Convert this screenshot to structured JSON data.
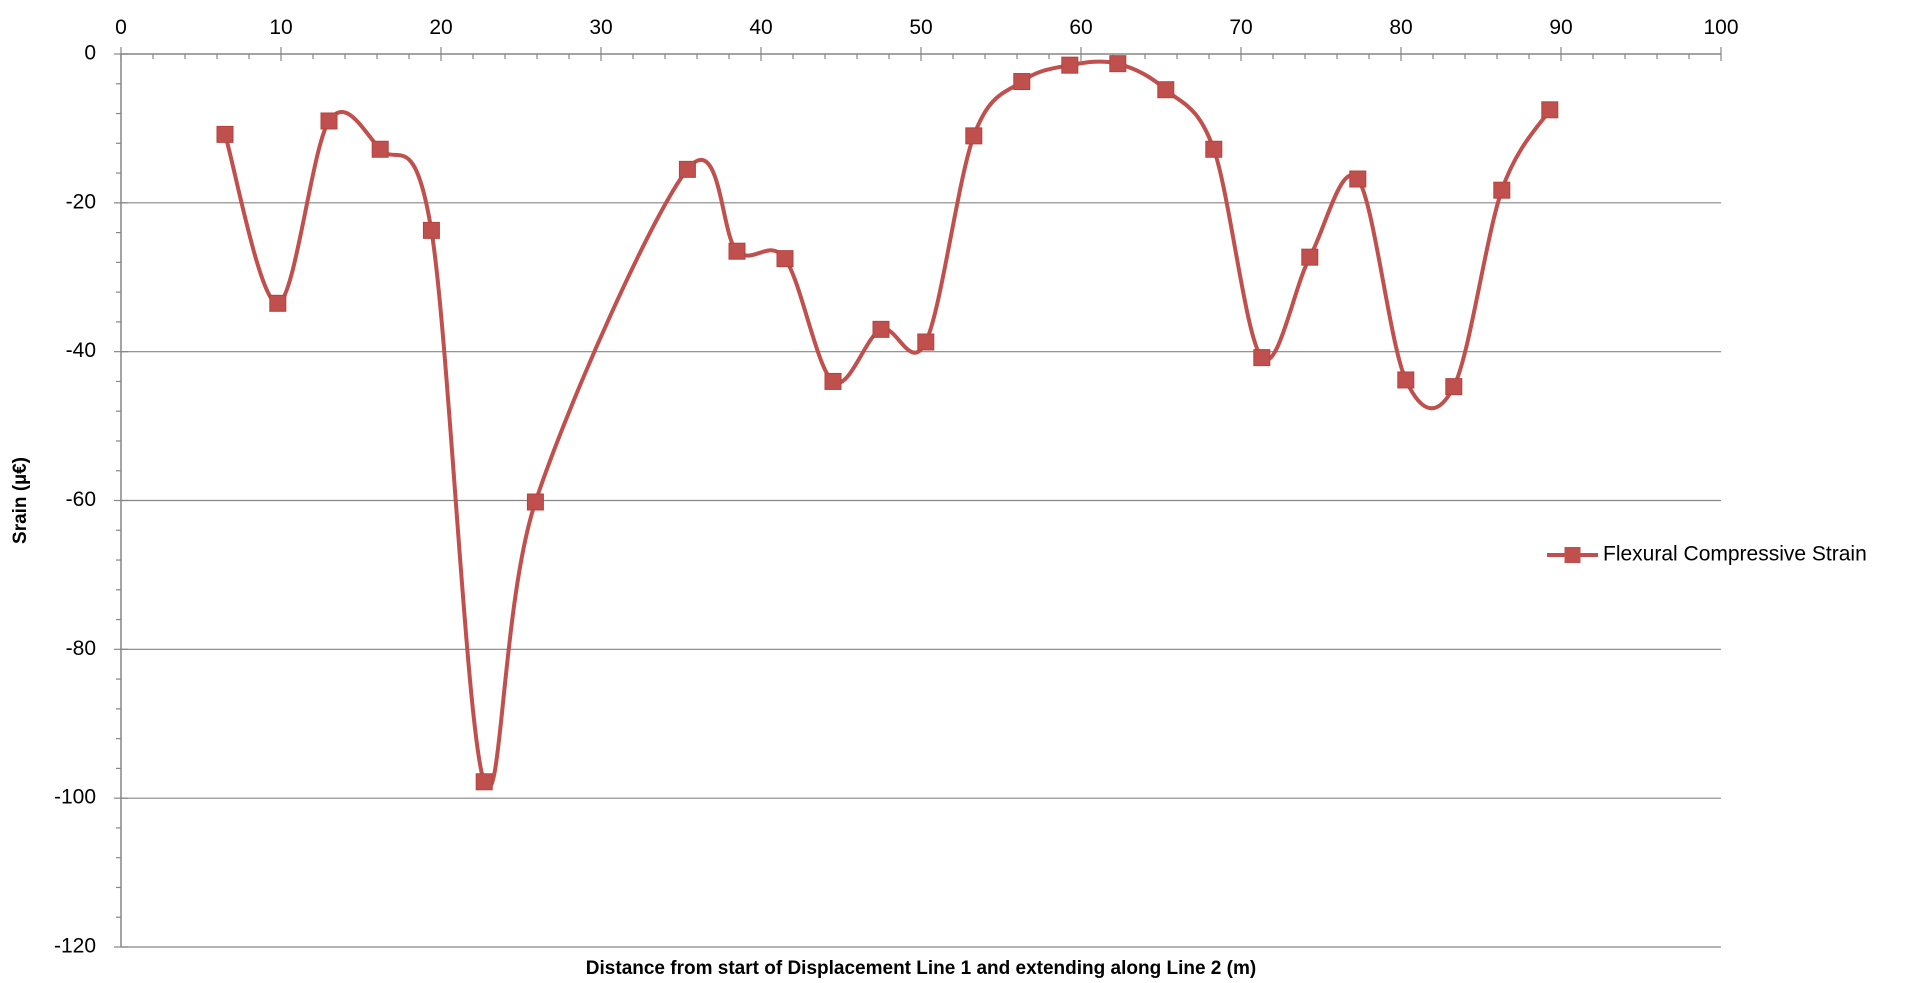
{
  "chart_data": {
    "type": "line",
    "smooth": true,
    "title": "",
    "xlabel": "Distance from start of Displacement Line 1 and extending along Line 2 (m)",
    "ylabel": "Srain (µ€)",
    "xlim": [
      0,
      100
    ],
    "ylim": [
      -120,
      0
    ],
    "x_axis_position": "top",
    "x_ticks": [
      0,
      10,
      20,
      30,
      40,
      50,
      60,
      70,
      80,
      90,
      100
    ],
    "y_ticks": [
      0,
      -20,
      -40,
      -60,
      -80,
      -100,
      -120
    ],
    "grid": "horizontal",
    "legend_position": "right",
    "series": [
      {
        "name": "Flexural Compressive Strain",
        "color": "#c0504d",
        "marker": "square",
        "points": [
          {
            "x": 6.5,
            "y": -10.8
          },
          {
            "x": 9.8,
            "y": -33.5
          },
          {
            "x": 13.0,
            "y": -9.0
          },
          {
            "x": 16.2,
            "y": -12.8
          },
          {
            "x": 19.4,
            "y": -23.7
          },
          {
            "x": 22.7,
            "y": -97.8
          },
          {
            "x": 25.9,
            "y": -60.2
          },
          {
            "x": 35.4,
            "y": -15.5
          },
          {
            "x": 38.5,
            "y": -26.5
          },
          {
            "x": 41.5,
            "y": -27.5
          },
          {
            "x": 44.5,
            "y": -44.0
          },
          {
            "x": 47.5,
            "y": -37.0
          },
          {
            "x": 50.3,
            "y": -38.7
          },
          {
            "x": 53.3,
            "y": -11.0
          },
          {
            "x": 56.3,
            "y": -3.7
          },
          {
            "x": 59.3,
            "y": -1.5
          },
          {
            "x": 62.3,
            "y": -1.3
          },
          {
            "x": 65.3,
            "y": -4.8
          },
          {
            "x": 68.3,
            "y": -12.8
          },
          {
            "x": 71.3,
            "y": -40.8
          },
          {
            "x": 74.3,
            "y": -27.3
          },
          {
            "x": 77.3,
            "y": -16.8
          },
          {
            "x": 80.3,
            "y": -43.8
          },
          {
            "x": 83.3,
            "y": -44.7
          },
          {
            "x": 86.3,
            "y": -18.3
          },
          {
            "x": 89.3,
            "y": -7.5
          }
        ]
      }
    ]
  }
}
